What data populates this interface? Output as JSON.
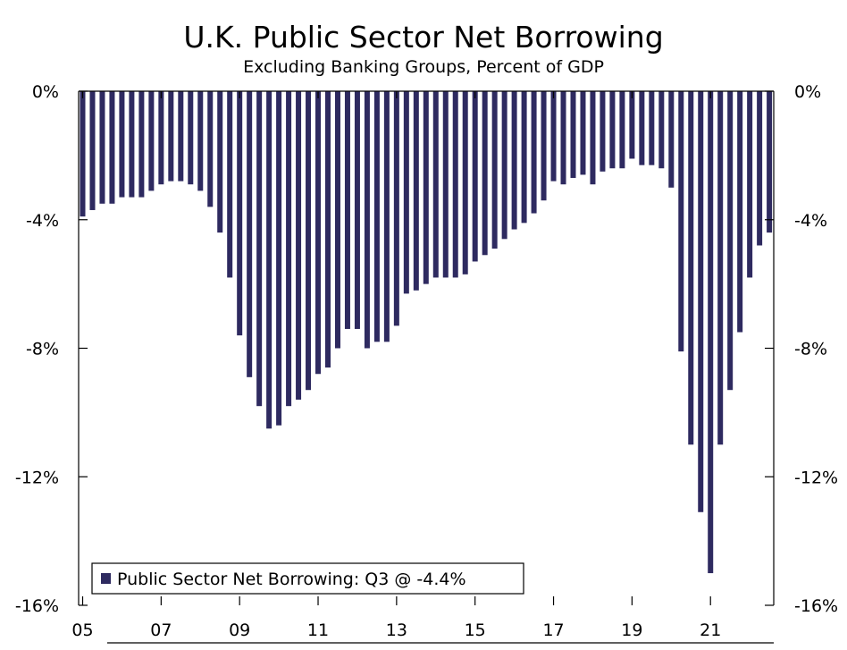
{
  "colors": {
    "bar": "#2E2A60",
    "axis": "#000000",
    "background": "#ffffff"
  },
  "chart_data": {
    "type": "bar",
    "title": "U.K. Public Sector Net Borrowing",
    "subtitle": "Excluding Banking Groups, Percent of GDP",
    "xlabel": "",
    "ylabel": "",
    "ylim": [
      -16,
      0
    ],
    "y_ticks": [
      0,
      -4,
      -8,
      -12,
      -16
    ],
    "y_tick_labels": [
      "0%",
      "-4%",
      "-8%",
      "-12%",
      "-16%"
    ],
    "x_tick_labels": [
      "05",
      "07",
      "09",
      "11",
      "13",
      "15",
      "17",
      "19",
      "21"
    ],
    "grid": false,
    "legend": {
      "label": "Public Sector Net Borrowing: Q3 @ -4.4%",
      "position": "bottom-left"
    },
    "series": [
      {
        "name": "Public Sector Net Borrowing",
        "frequency": "quarterly",
        "start": "2005-Q1",
        "values": [
          -3.9,
          -3.7,
          -3.5,
          -3.5,
          -3.3,
          -3.3,
          -3.3,
          -3.1,
          -2.9,
          -2.8,
          -2.8,
          -2.9,
          -3.1,
          -3.6,
          -4.4,
          -5.8,
          -7.6,
          -8.9,
          -9.8,
          -10.5,
          -10.4,
          -9.8,
          -9.6,
          -9.3,
          -8.8,
          -8.6,
          -8.0,
          -7.4,
          -7.4,
          -8.0,
          -7.8,
          -7.8,
          -7.3,
          -6.3,
          -6.2,
          -6.0,
          -5.8,
          -5.8,
          -5.8,
          -5.7,
          -5.3,
          -5.1,
          -4.9,
          -4.6,
          -4.3,
          -4.1,
          -3.8,
          -3.4,
          -2.8,
          -2.9,
          -2.7,
          -2.6,
          -2.9,
          -2.5,
          -2.4,
          -2.4,
          -2.1,
          -2.3,
          -2.3,
          -2.4,
          -3.0,
          -8.1,
          -11.0,
          -13.1,
          -15.0,
          -11.0,
          -9.3,
          -7.5,
          -5.8,
          -4.8,
          -4.4
        ]
      }
    ]
  }
}
